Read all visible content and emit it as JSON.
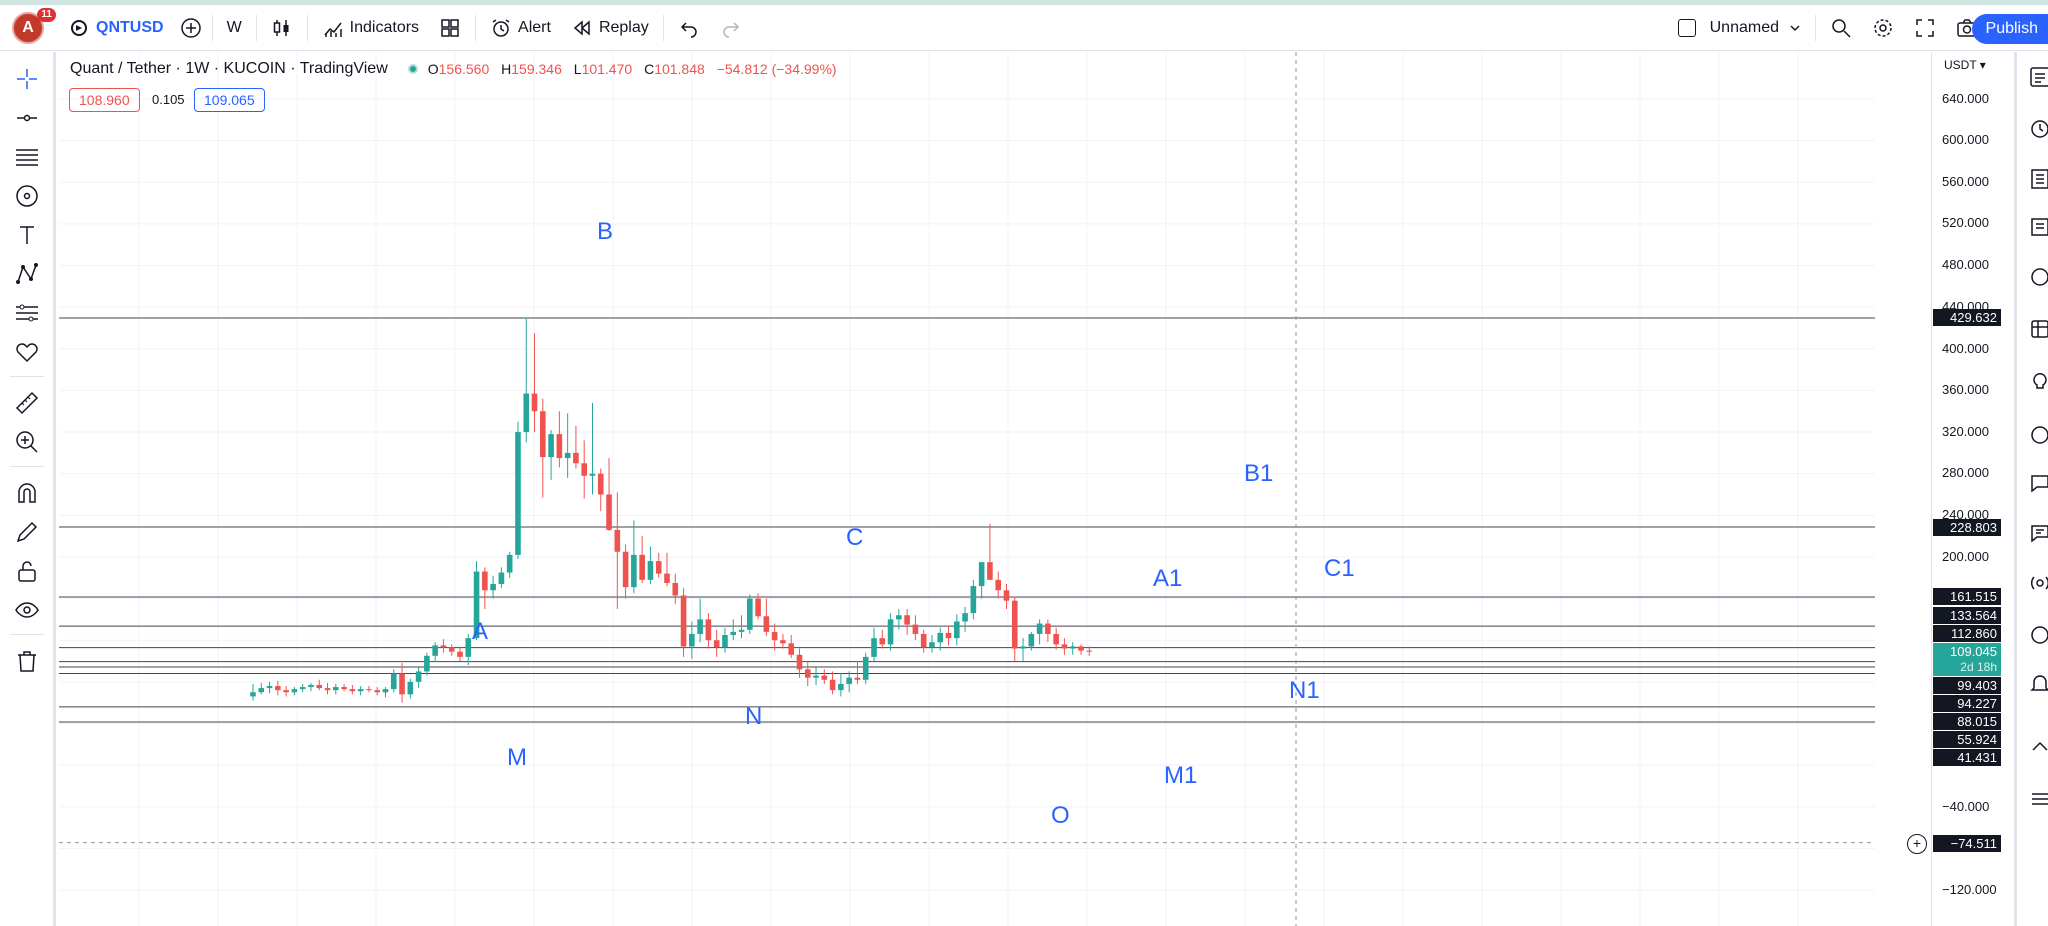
{
  "toolbar": {
    "avatar_letter": "A",
    "notification_count": "11",
    "symbol": "QNTUSD",
    "interval": "W",
    "indicators": "Indicators",
    "alert": "Alert",
    "replay": "Replay",
    "layout_name": "Unnamed",
    "publish": "Publish"
  },
  "legend": {
    "title": "Quant / Tether · 1W · KUCOIN · TradingView",
    "o_label": "O",
    "o": "156.560",
    "h_label": "H",
    "h": "159.346",
    "l_label": "L",
    "l": "101.470",
    "c_label": "C",
    "c": "101.848",
    "change": "−54.812 (−34.99%)",
    "bid": "108.960",
    "spread": "0.105",
    "ask": "109.065"
  },
  "axis": {
    "currency": "USDT",
    "ticks": [
      "640.000",
      "600.000",
      "560.000",
      "520.000",
      "480.000",
      "440.000",
      "400.000",
      "360.000",
      "320.000",
      "280.000",
      "240.000",
      "200.000",
      "−40.000",
      "−120.000"
    ]
  },
  "price_labels": {
    "l1": "429.632",
    "l2": "228.803",
    "l3": "161.515",
    "l4": "133.564",
    "l5": "112.860",
    "current": "109.045",
    "countdown": "2d 18h",
    "l6": "99.403",
    "l7": "94.227",
    "l8": "88.015",
    "l9": "55.924",
    "l10": "41.431",
    "crosshair": "−74.511"
  },
  "waves": {
    "A": "A",
    "B": "B",
    "C": "C",
    "M": "M",
    "N": "N",
    "O": "O",
    "A1": "A1",
    "B1": "B1",
    "C1": "C1",
    "M1": "M1",
    "N1": "N1"
  },
  "colors": {
    "up": "#26a69a",
    "down": "#ef5350",
    "accent": "#2962ff"
  },
  "chart_data": {
    "type": "candlestick",
    "interval": "1W",
    "ylim": [
      -160,
      680
    ],
    "horizontal_levels": [
      429.632,
      228.803,
      161.515,
      133.564,
      112.86,
      99.403,
      94.227,
      88.015,
      55.924,
      41.431
    ],
    "current_price": 109.045,
    "candles": [
      [
        66,
        78,
        62,
        70
      ],
      [
        70,
        79,
        68,
        74
      ],
      [
        74,
        80,
        69,
        76
      ],
      [
        76,
        81,
        67,
        72
      ],
      [
        72,
        76,
        66,
        70
      ],
      [
        70,
        75,
        67,
        73
      ],
      [
        73,
        78,
        70,
        75
      ],
      [
        75,
        79,
        71,
        77
      ],
      [
        77,
        82,
        72,
        74
      ],
      [
        74,
        79,
        68,
        72
      ],
      [
        72,
        78,
        68,
        75
      ],
      [
        75,
        78,
        71,
        73
      ],
      [
        73,
        77,
        68,
        71
      ],
      [
        71,
        76,
        67,
        73
      ],
      [
        73,
        76,
        70,
        72
      ],
      [
        72,
        75,
        67,
        70
      ],
      [
        70,
        75,
        65,
        73
      ],
      [
        73,
        92,
        70,
        88
      ],
      [
        88,
        98,
        60,
        68
      ],
      [
        68,
        83,
        64,
        80
      ],
      [
        80,
        94,
        74,
        90
      ],
      [
        90,
        108,
        86,
        105
      ],
      [
        105,
        118,
        99,
        115
      ],
      [
        115,
        121,
        108,
        113
      ],
      [
        113,
        116,
        105,
        109
      ],
      [
        109,
        114,
        100,
        104
      ],
      [
        104,
        126,
        96,
        122
      ],
      [
        122,
        196,
        120,
        186
      ],
      [
        186,
        190,
        150,
        168
      ],
      [
        168,
        182,
        160,
        174
      ],
      [
        174,
        190,
        170,
        185
      ],
      [
        185,
        205,
        180,
        202
      ],
      [
        202,
        330,
        198,
        320
      ],
      [
        320,
        430,
        310,
        357
      ],
      [
        357,
        415,
        320,
        340
      ],
      [
        340,
        352,
        257,
        296
      ],
      [
        296,
        322,
        274,
        318
      ],
      [
        318,
        340,
        286,
        295
      ],
      [
        295,
        338,
        276,
        300
      ],
      [
        300,
        326,
        285,
        290
      ],
      [
        290,
        312,
        256,
        278
      ],
      [
        278,
        348,
        260,
        280
      ],
      [
        280,
        285,
        244,
        260
      ],
      [
        260,
        295,
        225,
        226
      ],
      [
        226,
        262,
        150,
        205
      ],
      [
        205,
        212,
        160,
        171
      ],
      [
        171,
        235,
        165,
        202
      ],
      [
        202,
        220,
        175,
        178
      ],
      [
        178,
        210,
        174,
        196
      ],
      [
        196,
        204,
        180,
        184
      ],
      [
        184,
        204,
        172,
        175
      ],
      [
        175,
        184,
        155,
        163
      ],
      [
        163,
        170,
        104,
        114
      ],
      [
        114,
        138,
        102,
        126
      ],
      [
        126,
        160,
        118,
        140
      ],
      [
        140,
        146,
        112,
        120
      ],
      [
        120,
        130,
        104,
        113
      ],
      [
        113,
        132,
        108,
        125
      ],
      [
        125,
        140,
        120,
        128
      ],
      [
        128,
        144,
        122,
        130
      ],
      [
        130,
        164,
        126,
        160
      ],
      [
        160,
        165,
        140,
        143
      ],
      [
        143,
        160,
        124,
        128
      ],
      [
        128,
        136,
        110,
        120
      ],
      [
        120,
        126,
        112,
        117
      ],
      [
        117,
        125,
        103,
        106
      ],
      [
        106,
        112,
        84,
        92
      ],
      [
        92,
        99,
        76,
        84
      ],
      [
        84,
        94,
        77,
        86
      ],
      [
        86,
        92,
        78,
        82
      ],
      [
        82,
        90,
        68,
        72
      ],
      [
        72,
        88,
        66,
        78
      ],
      [
        78,
        90,
        70,
        84
      ],
      [
        84,
        100,
        78,
        82
      ],
      [
        82,
        108,
        78,
        104
      ],
      [
        104,
        132,
        100,
        122
      ],
      [
        122,
        130,
        112,
        116
      ],
      [
        116,
        146,
        110,
        140
      ],
      [
        140,
        150,
        130,
        144
      ],
      [
        144,
        150,
        125,
        135
      ],
      [
        135,
        144,
        120,
        126
      ],
      [
        126,
        130,
        108,
        113
      ],
      [
        113,
        125,
        108,
        118
      ],
      [
        118,
        132,
        110,
        127
      ],
      [
        127,
        134,
        115,
        122
      ],
      [
        122,
        145,
        115,
        138
      ],
      [
        138,
        152,
        128,
        146
      ],
      [
        146,
        178,
        140,
        172
      ],
      [
        172,
        195,
        160,
        195
      ],
      [
        195,
        232,
        178,
        178
      ],
      [
        178,
        186,
        160,
        168
      ],
      [
        168,
        174,
        150,
        158
      ],
      [
        158,
        162,
        100,
        112
      ],
      [
        112,
        122,
        100,
        114
      ],
      [
        114,
        128,
        110,
        126
      ],
      [
        126,
        140,
        116,
        136
      ],
      [
        136,
        140,
        118,
        126
      ],
      [
        126,
        132,
        111,
        116
      ],
      [
        116,
        122,
        106,
        112
      ],
      [
        112,
        118,
        106,
        114
      ],
      [
        114,
        116,
        106,
        110
      ],
      [
        110,
        114,
        105,
        109
      ]
    ]
  }
}
